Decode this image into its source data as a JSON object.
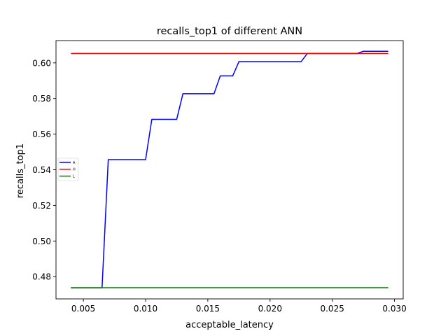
{
  "chart_data": {
    "type": "line",
    "title": "recalls_top1 of different ANN",
    "xlabel": "acceptable_latency",
    "ylabel": "recalls_top1",
    "xlim": [
      0.0028,
      0.0307
    ],
    "ylim": [
      0.4675,
      0.6125
    ],
    "xticks": [
      0.005,
      0.01,
      0.015,
      0.02,
      0.025,
      0.03
    ],
    "xtick_labels": [
      "0.005",
      "0.010",
      "0.015",
      "0.020",
      "0.025",
      "0.030"
    ],
    "yticks": [
      0.48,
      0.5,
      0.52,
      0.54,
      0.56,
      0.58,
      0.6
    ],
    "ytick_labels": [
      "0.48",
      "0.50",
      "0.52",
      "0.54",
      "0.56",
      "0.58",
      "0.60"
    ],
    "legend_position": "center-left",
    "series": [
      {
        "name": "A",
        "color": "#0000ff",
        "x": [
          0.004,
          0.0065,
          0.007,
          0.01,
          0.0105,
          0.0125,
          0.013,
          0.0155,
          0.016,
          0.017,
          0.0175,
          0.0225,
          0.023,
          0.027,
          0.0275,
          0.0295
        ],
        "y": [
          0.4737,
          0.4737,
          0.5457,
          0.5457,
          0.5683,
          0.5683,
          0.5827,
          0.5827,
          0.5927,
          0.5927,
          0.6007,
          0.6007,
          0.6053,
          0.6053,
          0.6065,
          0.6065
        ]
      },
      {
        "name": "H",
        "color": "#ff0000",
        "x": [
          0.004,
          0.0295
        ],
        "y": [
          0.6053,
          0.6053
        ]
      },
      {
        "name": "L",
        "color": "#008000",
        "x": [
          0.004,
          0.0295
        ],
        "y": [
          0.4738,
          0.4738
        ]
      }
    ]
  }
}
